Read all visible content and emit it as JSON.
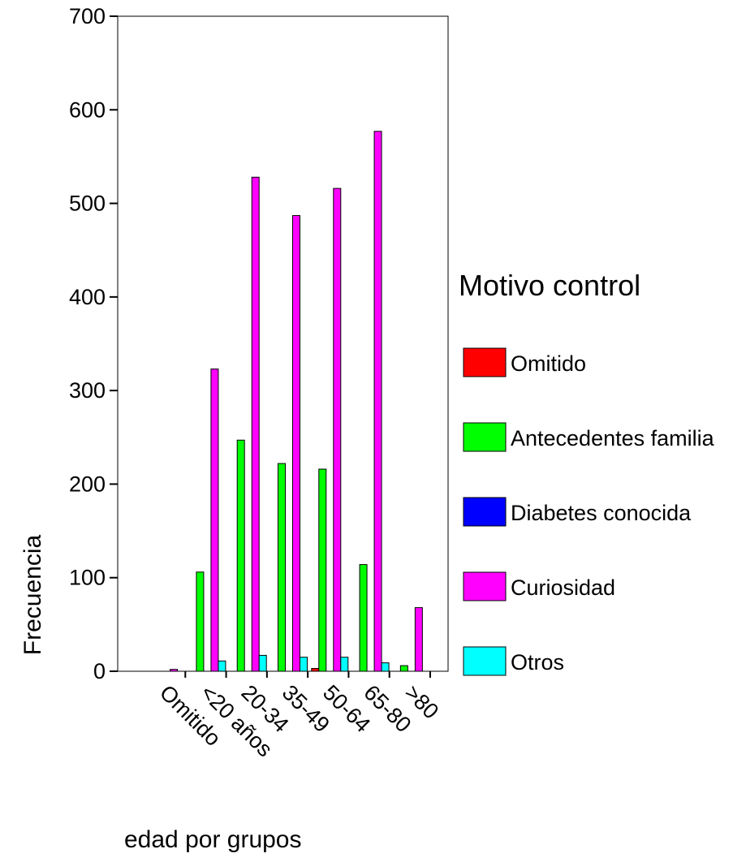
{
  "chart_data": {
    "type": "bar",
    "title": "",
    "xlabel": "edad por grupos",
    "ylabel": "Frecuencia",
    "ylim": [
      0,
      700
    ],
    "yticks": [
      0,
      100,
      200,
      300,
      400,
      500,
      600,
      700
    ],
    "categories": [
      "Omitido",
      "<20 años",
      "20-34",
      "35-49",
      "50-64",
      "65-80",
      ">80"
    ],
    "legend_title": "Motivo control",
    "legend_position": "right",
    "grid": false,
    "series": [
      {
        "name": "Omitido",
        "color": "#ff0000",
        "values": [
          0,
          0,
          0,
          0,
          3,
          0,
          0
        ]
      },
      {
        "name": "Antecedentes familia",
        "color": "#00ff00",
        "values": [
          0,
          106,
          247,
          222,
          216,
          114,
          6
        ]
      },
      {
        "name": "Diabetes conocida",
        "color": "#0000ff",
        "values": [
          0,
          0,
          0,
          0,
          0,
          0,
          0
        ]
      },
      {
        "name": "Curiosidad",
        "color": "#ff00ff",
        "values": [
          2,
          323,
          528,
          487,
          516,
          577,
          68
        ]
      },
      {
        "name": "Otros",
        "color": "#00ffff",
        "values": [
          0,
          11,
          17,
          15,
          15,
          9,
          0
        ]
      }
    ]
  }
}
